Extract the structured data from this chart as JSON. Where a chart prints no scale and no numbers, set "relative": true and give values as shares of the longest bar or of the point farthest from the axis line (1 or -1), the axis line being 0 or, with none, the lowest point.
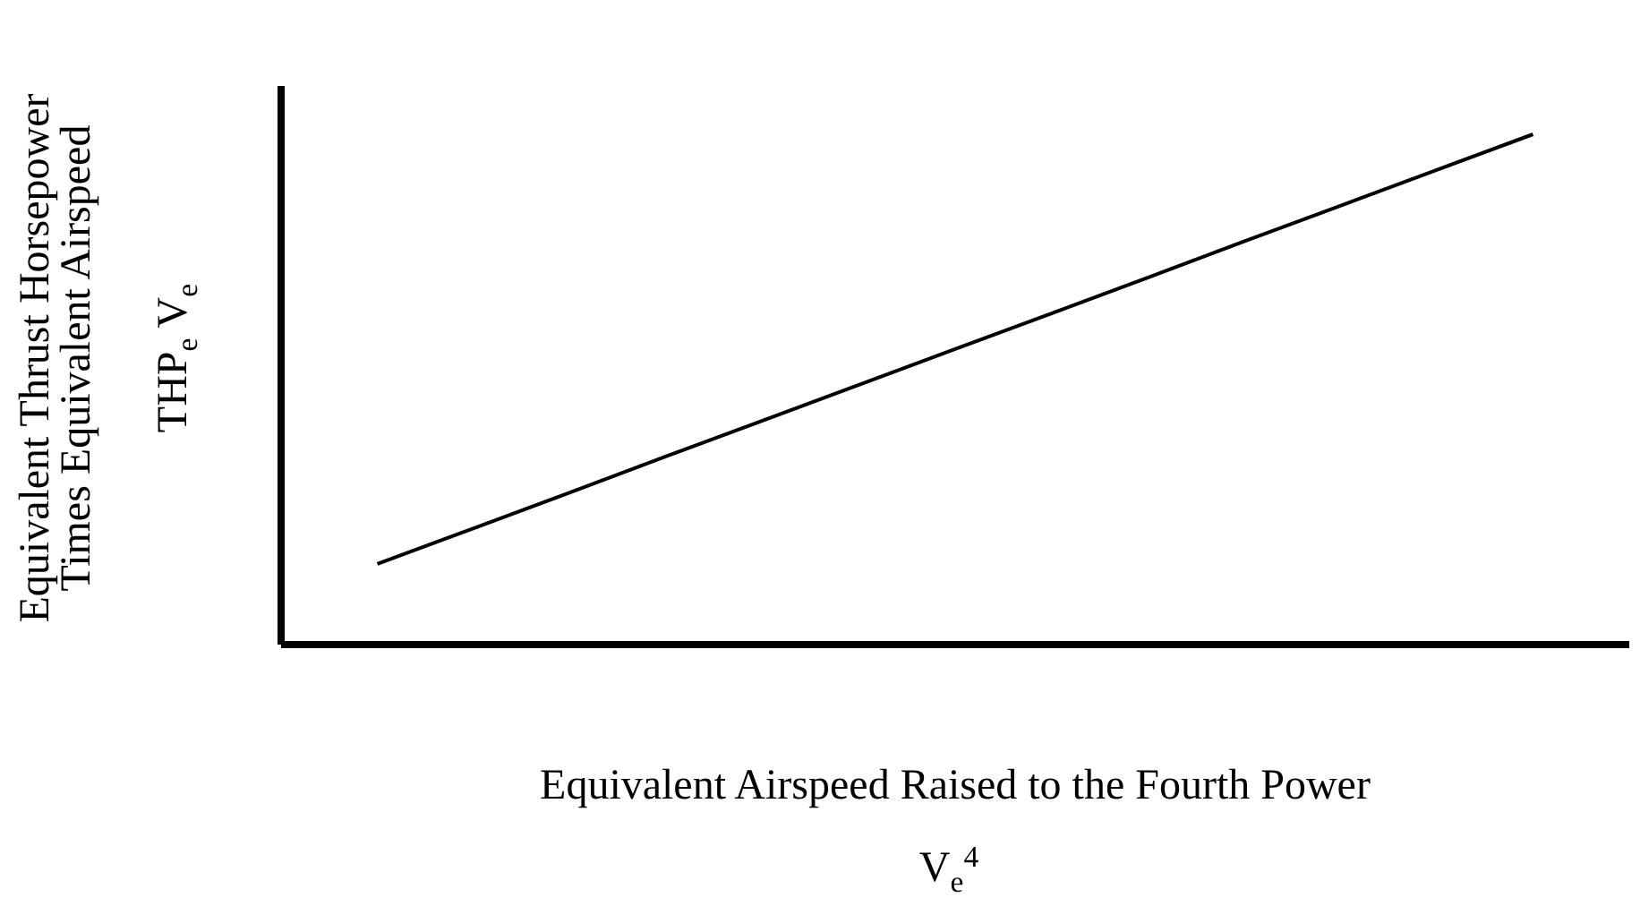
{
  "chart_data": {
    "type": "line",
    "relative": true,
    "xlabel": "Equivalent Airspeed Raised to the Fourth Power",
    "ylabel": "Equivalent Thrust Horsepower\nTimes Equivalent Airspeed",
    "annotations": [
      "V$_{e}$$^{4}$",
      "THP$_{e}$ V$_{e}$"
    ],
    "categories": [
      null,
      null,
      null,
      null,
      null,
      null,
      null,
      null,
      null,
      null,
      null,
      null,
      null,
      null,
      null
    ],
    "color": "#000000",
    "values": [
      null,
      0.158,
      0.228,
      0.298,
      0.369,
      0.439,
      0.509,
      0.579,
      0.649,
      0.719,
      0.79,
      0.86,
      0.93,
      1,
      null
    ]
  }
}
